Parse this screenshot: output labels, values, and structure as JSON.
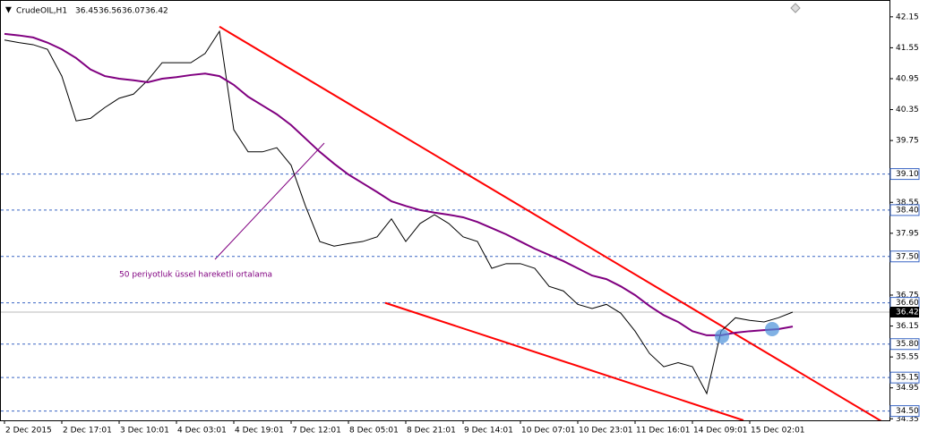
{
  "chart_data": {
    "type": "line",
    "header": {
      "symbol": "CrudeOIL,H1",
      "ohlc": [
        36.45,
        36.56,
        36.07,
        36.42
      ]
    },
    "annotation": "50 periyotluk üssel hareketli ortalama",
    "categories": [
      "2 Dec 2015",
      null,
      null,
      null,
      "2 Dec 17:01",
      null,
      null,
      null,
      "3 Dec 10:01",
      null,
      null,
      null,
      "4 Dec 03:01",
      null,
      null,
      null,
      "4 Dec 19:01",
      null,
      null,
      null,
      "7 Dec 12:01",
      null,
      null,
      null,
      "8 Dec 05:01",
      null,
      null,
      null,
      "8 Dec 21:01",
      null,
      null,
      null,
      "9 Dec 14:01",
      null,
      null,
      null,
      "10 Dec 07:01",
      null,
      null,
      null,
      "10 Dec 23:01",
      null,
      null,
      null,
      "11 Dec 16:01",
      null,
      null,
      null,
      "14 Dec 09:01",
      null,
      null,
      null,
      "15 Dec 02:01",
      null,
      null,
      null
    ],
    "series": [
      {
        "color": "#000000",
        "values": [
          41.7,
          41.65,
          41.61,
          41.52,
          41.0,
          40.13,
          40.18,
          40.39,
          40.57,
          40.65,
          40.92,
          41.26,
          41.26,
          41.26,
          41.44,
          41.87,
          39.96,
          39.53,
          39.53,
          39.61,
          39.27,
          38.48,
          37.79,
          37.7,
          37.75,
          37.79,
          37.88,
          38.23,
          37.79,
          38.14,
          38.31,
          38.14,
          37.88,
          37.79,
          37.27,
          37.36,
          37.36,
          37.27,
          36.92,
          36.83,
          36.57,
          36.49,
          36.57,
          36.4,
          36.05,
          35.62,
          35.36,
          35.44,
          35.36,
          34.84,
          36.05,
          36.31,
          36.26,
          36.23,
          36.31,
          36.42
        ]
      },
      {
        "color": "#800080",
        "values": [
          41.82,
          41.79,
          41.75,
          41.65,
          41.52,
          41.35,
          41.13,
          41.0,
          40.95,
          40.92,
          40.88,
          40.95,
          40.98,
          41.02,
          41.05,
          41.0,
          40.83,
          40.6,
          40.43,
          40.26,
          40.05,
          39.79,
          39.53,
          39.3,
          39.09,
          38.92,
          38.75,
          38.57,
          38.48,
          38.4,
          38.35,
          38.31,
          38.26,
          38.17,
          38.05,
          37.93,
          37.79,
          37.65,
          37.53,
          37.41,
          37.27,
          37.13,
          37.06,
          36.92,
          36.75,
          36.54,
          36.36,
          36.23,
          36.05,
          35.97,
          35.97,
          36.02,
          36.05,
          36.07,
          36.09,
          36.14
        ]
      }
    ],
    "trendlines": [
      {
        "color": "#ff0000",
        "x": [
          15,
          61.75
        ],
        "y": [
          41.96,
          34.21
        ]
      },
      {
        "color": "#ff0000",
        "x": [
          26.56,
          51.56
        ],
        "y": [
          36.6,
          34.32
        ]
      }
    ],
    "levels": [
      {
        "value": 39.1,
        "label": "39.10"
      },
      {
        "value": 38.4,
        "label": "38.40"
      },
      {
        "value": 37.5,
        "label": "37.50"
      },
      {
        "value": 36.6,
        "label": "36.60"
      },
      {
        "value": 35.8,
        "label": "35.80"
      },
      35.15,
      {
        "value": 34.5,
        "label": "34.50"
      }
    ],
    "level_color": "#3a66c4",
    "current_price": 36.42,
    "ylim": [
      34.32,
      42.39
    ],
    "yticks": [
      42.15,
      41.55,
      40.95,
      40.35,
      39.75,
      38.55,
      37.95,
      36.75,
      36.15,
      35.55,
      34.95,
      34.35
    ]
  }
}
